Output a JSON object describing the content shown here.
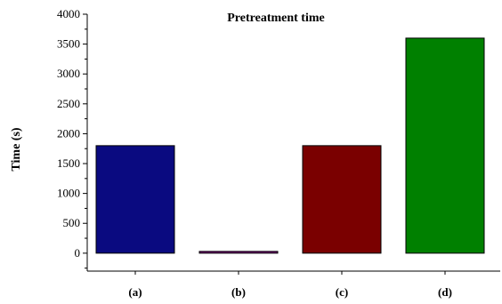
{
  "chart_data": {
    "type": "bar",
    "title": "Pretreatment time",
    "xlabel": "",
    "ylabel": "Time (s)",
    "categories": [
      "(a)",
      "(b)",
      "(c)",
      "(d)"
    ],
    "values": [
      1800,
      30,
      1800,
      3600
    ],
    "colors": [
      "#0a0a80",
      "#800080",
      "#7a0000",
      "#008000"
    ],
    "ylim": [
      -300,
      4000
    ],
    "yticks": [
      0,
      500,
      1000,
      1500,
      2000,
      2500,
      3000,
      3500,
      4000
    ],
    "grid": false,
    "legend": "none"
  }
}
